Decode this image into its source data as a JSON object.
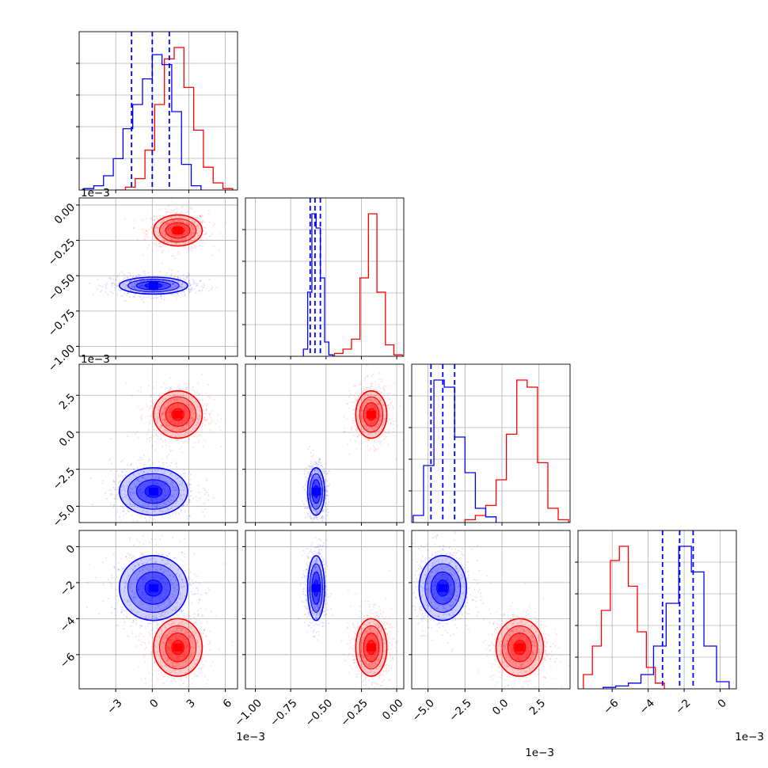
{
  "chart_data": {
    "type": "corner",
    "variables": 4,
    "tick_labels": [
      [
        "−3",
        "0",
        "3",
        "6"
      ],
      [
        "−1.00",
        "−0.75",
        "−0.50",
        "−0.25",
        "0.00"
      ],
      [
        "−5.0",
        "−2.5",
        "0.0",
        "2.5"
      ],
      [
        "−6",
        "−4",
        "−2",
        "0"
      ]
    ],
    "offset_labels": {
      "x": [
        "1e−3",
        "",
        "1e−3",
        "1e−3"
      ],
      "y": [
        "",
        "1e−3",
        "1e−3",
        ""
      ]
    },
    "ranges": [
      [
        -6,
        7
      ],
      [
        -1.07,
        0.05
      ],
      [
        -6.1,
        4.6
      ],
      [
        -7.9,
        0.9
      ]
    ],
    "series": [
      {
        "color": "#ff0000",
        "means": [
          2.1,
          -0.18,
          1.2,
          -5.6
        ],
        "sds": [
          1.0,
          0.055,
          0.8,
          0.8
        ],
        "hist": [
          {
            "x": [
              -3,
              -2.2,
              -1.4,
              -0.6,
              0.2,
              1.0,
              1.8,
              2.6,
              3.4,
              4.2,
              5.0,
              5.8
            ],
            "h": [
              0,
              0.02,
              0.08,
              0.28,
              0.6,
              0.92,
              1.0,
              0.72,
              0.42,
              0.16,
              0.05,
              0.01
            ]
          },
          {
            "x": [
              -0.44,
              -0.38,
              -0.32,
              -0.26,
              -0.2,
              -0.14,
              -0.08,
              -0.02
            ],
            "h": [
              0.02,
              0.05,
              0.12,
              0.55,
              1.0,
              0.45,
              0.08,
              0.01
            ]
          },
          {
            "x": [
              -2.5,
              -1.8,
              -1.1,
              -0.4,
              0.3,
              1.0,
              1.7,
              2.4,
              3.1,
              3.8
            ],
            "h": [
              0.02,
              0.05,
              0.12,
              0.3,
              0.62,
              1.0,
              0.95,
              0.42,
              0.1,
              0.02
            ]
          },
          {
            "x": [
              -7.6,
              -7.1,
              -6.6,
              -6.1,
              -5.6,
              -5.1,
              -4.6,
              -4.1,
              -3.6
            ],
            "h": [
              0.1,
              0.3,
              0.55,
              0.9,
              1.0,
              0.72,
              0.4,
              0.15,
              0.04
            ]
          }
        ]
      },
      {
        "color": "#0000ff",
        "means": [
          0.1,
          -0.57,
          -4.0,
          -2.3
        ],
        "sds": [
          1.4,
          0.03,
          0.8,
          0.9
        ],
        "hist": [
          {
            "x": [
              -5.6,
              -4.8,
              -4.0,
              -3.2,
              -2.4,
              -1.6,
              -0.8,
              0.0,
              0.8,
              1.6,
              2.4,
              3.2
            ],
            "h": [
              0.01,
              0.03,
              0.1,
              0.22,
              0.43,
              0.6,
              0.78,
              0.95,
              0.88,
              0.55,
              0.18,
              0.03
            ]
          },
          {
            "x": [
              -0.66,
              -0.63,
              -0.6,
              -0.57,
              -0.54,
              -0.51,
              -0.48
            ],
            "h": [
              0.05,
              0.45,
              1.0,
              0.9,
              0.55,
              0.1,
              0.01
            ]
          },
          {
            "x": [
              -6.0,
              -5.3,
              -4.6,
              -3.9,
              -3.2,
              -2.5,
              -1.8,
              -1.1
            ],
            "h": [
              0.05,
              0.4,
              1.0,
              0.95,
              0.6,
              0.35,
              0.1,
              0.04
            ]
          },
          {
            "x": [
              -6.5,
              -5.8,
              -5.1,
              -4.4,
              -3.7,
              -3.0,
              -2.3,
              -1.6,
              -0.9,
              -0.2
            ],
            "h": [
              0.01,
              0.02,
              0.04,
              0.1,
              0.3,
              0.6,
              1.0,
              0.82,
              0.3,
              0.05
            ]
          }
        ]
      }
    ],
    "quantile_lines": [
      [
        -1.7,
        0.0,
        1.4
      ],
      [
        -0.612,
        -0.578,
        -0.54
      ],
      [
        -4.8,
        -4.0,
        -3.2
      ],
      [
        -3.2,
        -2.25,
        -1.5
      ]
    ],
    "quantile_line_color": "#0000ff"
  }
}
